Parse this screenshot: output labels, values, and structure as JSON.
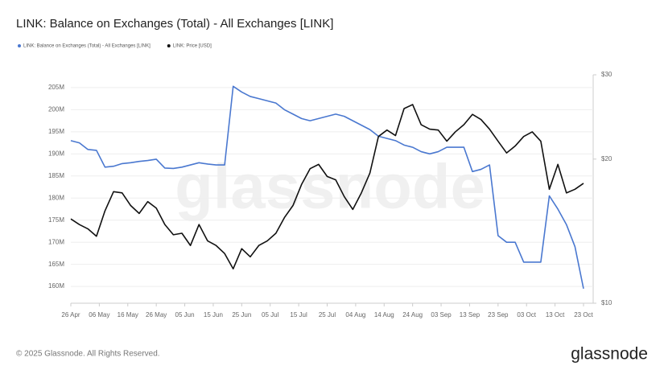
{
  "chart_data": {
    "type": "line",
    "title": "LINK: Balance on Exchanges (Total) - All Exchanges [LINK]",
    "watermark": "glassnode",
    "footer": "© 2025 Glassnode. All Rights Reserved.",
    "logo": "glassnode",
    "x": [
      "26 Apr",
      "29 Apr",
      "02 May",
      "05 May",
      "08 May",
      "11 May",
      "14 May",
      "17 May",
      "20 May",
      "23 May",
      "26 May",
      "29 May",
      "01 Jun",
      "04 Jun",
      "07 Jun",
      "10 Jun",
      "13 Jun",
      "16 Jun",
      "19 Jun",
      "22 Jun",
      "25 Jun",
      "28 Jun",
      "01 Jul",
      "04 Jul",
      "07 Jul",
      "10 Jul",
      "13 Jul",
      "16 Jul",
      "19 Jul",
      "22 Jul",
      "25 Jul",
      "28 Jul",
      "31 Jul",
      "03 Aug",
      "06 Aug",
      "09 Aug",
      "12 Aug",
      "15 Aug",
      "18 Aug",
      "21 Aug",
      "24 Aug",
      "27 Aug",
      "30 Aug",
      "02 Sep",
      "05 Sep",
      "08 Sep",
      "11 Sep",
      "14 Sep",
      "17 Sep",
      "20 Sep",
      "23 Sep",
      "26 Sep",
      "29 Sep",
      "02 Oct",
      "05 Oct",
      "08 Oct",
      "11 Oct",
      "14 Oct",
      "17 Oct",
      "20 Oct",
      "23 Oct"
    ],
    "xticks": [
      "26 Apr",
      "06 May",
      "16 May",
      "26 May",
      "05 Jun",
      "15 Jun",
      "25 Jun",
      "05 Jul",
      "15 Jul",
      "25 Jul",
      "04 Aug",
      "14 Aug",
      "24 Aug",
      "03 Sep",
      "13 Sep",
      "23 Sep",
      "03 Oct",
      "13 Oct",
      "23 Oct"
    ],
    "series": [
      {
        "name": "LINK: Balance on Exchanges (Total) - All Exchanges [LINK]",
        "color": "#4a78d0",
        "axis": "y",
        "values": [
          193000000,
          192500000,
          191000000,
          190800000,
          187000000,
          187200000,
          187800000,
          188000000,
          188300000,
          188500000,
          188800000,
          186800000,
          186700000,
          187000000,
          187500000,
          188000000,
          187700000,
          187500000,
          187500000,
          205300000,
          204000000,
          203000000,
          202500000,
          202000000,
          201500000,
          200000000,
          199000000,
          198000000,
          197500000,
          198000000,
          198500000,
          199000000,
          198500000,
          197500000,
          196500000,
          195500000,
          194000000,
          193500000,
          193000000,
          192000000,
          191500000,
          190500000,
          190000000,
          190500000,
          191500000,
          191500000,
          191500000,
          186000000,
          186500000,
          187500000,
          171500000,
          170000000,
          170000000,
          165500000,
          165500000,
          165500000,
          180500000,
          177500000,
          174000000,
          169000000,
          159500000
        ]
      },
      {
        "name": "LINK: Price [USD]",
        "color": "#111111",
        "axis": "y2",
        "values": [
          15.0,
          14.6,
          14.3,
          13.8,
          15.6,
          17.1,
          17.0,
          16.0,
          15.4,
          16.3,
          15.8,
          14.6,
          13.9,
          14.0,
          13.2,
          14.6,
          13.5,
          13.2,
          12.7,
          11.8,
          13.0,
          12.5,
          13.2,
          13.5,
          14.0,
          15.1,
          16.0,
          17.7,
          19.1,
          19.5,
          18.4,
          18.1,
          16.7,
          15.7,
          17.0,
          18.7,
          22.3,
          23.0,
          22.4,
          25.5,
          26.0,
          23.6,
          23.1,
          23.0,
          21.8,
          22.8,
          23.6,
          24.8,
          24.2,
          23.1,
          21.8,
          20.6,
          21.3,
          22.3,
          22.8,
          21.8,
          17.3,
          19.5,
          17.0,
          17.3,
          17.8
        ]
      }
    ],
    "ylim": [
      156200000,
      207900000
    ],
    "yticks": [
      {
        "value": 160000000,
        "label": "160M"
      },
      {
        "value": 165000000,
        "label": "165M"
      },
      {
        "value": 170000000,
        "label": "170M"
      },
      {
        "value": 175000000,
        "label": "175M"
      },
      {
        "value": 180000000,
        "label": "180M"
      },
      {
        "value": 185000000,
        "label": "185M"
      },
      {
        "value": 190000000,
        "label": "190M"
      },
      {
        "value": 195000000,
        "label": "195M"
      },
      {
        "value": 200000000,
        "label": "200M"
      },
      {
        "value": 205000000,
        "label": "205M"
      }
    ],
    "y2lim": [
      10,
      30
    ],
    "y2log": true,
    "y2ticks": [
      {
        "value": 10,
        "label": "$10"
      },
      {
        "value": 20,
        "label": "$20"
      },
      {
        "value": 30,
        "label": "$30"
      }
    ],
    "grid": true
  }
}
